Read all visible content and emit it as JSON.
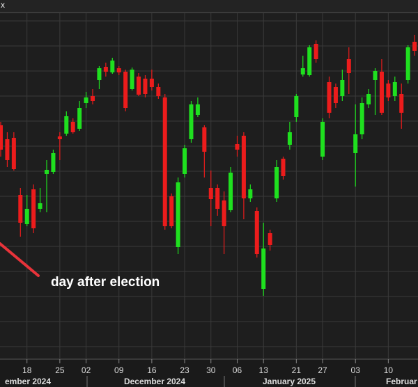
{
  "chart_data": {
    "type": "candlestick",
    "title": "x",
    "categories": [
      null,
      null,
      null,
      null,
      "18",
      null,
      null,
      null,
      null,
      "25",
      null,
      null,
      null,
      "02",
      null,
      null,
      null,
      null,
      "09",
      null,
      null,
      null,
      null,
      "16",
      null,
      null,
      null,
      null,
      "23",
      null,
      null,
      null,
      "30",
      null,
      null,
      null,
      "06",
      null,
      null,
      null,
      "13",
      null,
      null,
      null,
      null,
      "21",
      null,
      null,
      null,
      "27",
      null,
      null,
      null,
      null,
      "03",
      null,
      null,
      null,
      null,
      "10",
      null,
      null,
      null,
      null
    ],
    "months": [
      "ember 2024",
      "December 2024",
      "January 2025",
      "Februar"
    ],
    "open": [
      340,
      320,
      322,
      240,
      198,
      248,
      220,
      270,
      273,
      324,
      328,
      345,
      335,
      372,
      382,
      405,
      424,
      416,
      422,
      417,
      392,
      410,
      407,
      407,
      395,
      380,
      238,
      165,
      270,
      320,
      355,
      337,
      250,
      250,
      232,
      218,
      313,
      325,
      235,
      217,
      105,
      185,
      235,
      292,
      312,
      352,
      413,
      412,
      457,
      295,
      402,
      395,
      382,
      435,
      300,
      327,
      370,
      405,
      417,
      400,
      382,
      385,
      405,
      460
    ],
    "high": [
      345,
      330,
      330,
      250,
      240,
      255,
      250,
      290,
      305,
      330,
      360,
      350,
      375,
      388,
      392,
      425,
      430,
      437,
      425,
      420,
      423,
      415,
      412,
      420,
      400,
      385,
      242,
      265,
      312,
      375,
      380,
      340,
      275,
      255,
      245,
      280,
      325,
      330,
      255,
      222,
      200,
      190,
      290,
      295,
      345,
      385,
      440,
      455,
      462,
      350,
      410,
      400,
      420,
      452,
      370,
      380,
      392,
      422,
      435,
      405,
      410,
      400,
      455,
      470
    ],
    "low": [
      295,
      280,
      275,
      180,
      195,
      185,
      215,
      215,
      270,
      290,
      325,
      328,
      332,
      365,
      370,
      392,
      410,
      414,
      412,
      360,
      390,
      382,
      380,
      390,
      378,
      190,
      192,
      155,
      265,
      315,
      352,
      265,
      195,
      210,
      155,
      215,
      295,
      205,
      230,
      150,
      95,
      160,
      230,
      262,
      305,
      345,
      410,
      410,
      430,
      290,
      350,
      365,
      375,
      385,
      252,
      320,
      365,
      355,
      355,
      375,
      375,
      335,
      400,
      440
    ],
    "close": [
      305,
      290,
      277,
      200,
      220,
      192,
      228,
      276,
      300,
      320,
      353,
      330,
      365,
      380,
      375,
      422,
      417,
      433,
      416,
      365,
      420,
      384,
      385,
      395,
      382,
      195,
      195,
      258,
      307,
      370,
      370,
      302,
      234,
      220,
      195,
      272,
      305,
      235,
      248,
      155,
      163,
      168,
      280,
      267,
      330,
      382,
      422,
      452,
      435,
      345,
      358,
      372,
      405,
      415,
      327,
      372,
      385,
      418,
      358,
      380,
      402,
      358,
      452,
      447
    ],
    "up_color": "#1fe01f",
    "down_color": "#ec1c1c",
    "ylim": [
      5,
      510
    ],
    "yticks": [
      22,
      58,
      94,
      130,
      166,
      202,
      238,
      274,
      310,
      346,
      382,
      418,
      454,
      490
    ],
    "grid": true,
    "annotations": [
      {
        "text": "day after election"
      }
    ]
  }
}
